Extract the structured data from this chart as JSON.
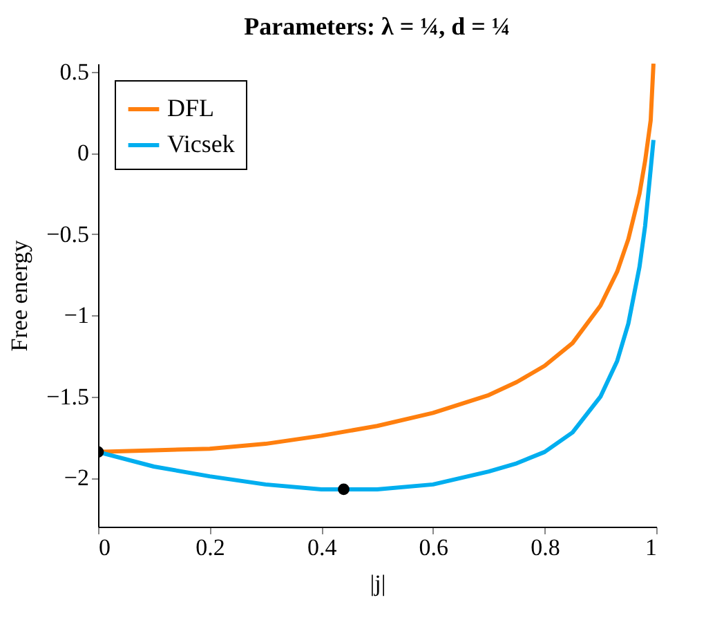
{
  "chart_data": {
    "type": "line",
    "title": "Parameters:  λ = ¼, d = ¼",
    "xlabel": "|j|",
    "ylabel": "Free energy",
    "xlim": [
      0,
      1
    ],
    "ylim": [
      -2.3,
      0.55
    ],
    "xticks": [
      0,
      0.2,
      0.4,
      0.6,
      0.8,
      1
    ],
    "yticks": [
      0.5,
      0,
      {
        "value": -0.5,
        "label": "−0.5"
      },
      {
        "value": -1,
        "label": "−1"
      },
      {
        "value": -1.5,
        "label": "−1.5"
      },
      {
        "value": -2,
        "label": "−2"
      }
    ],
    "grid": false,
    "legend": "top left",
    "marker": "none",
    "line_style": "solid",
    "series": [
      {
        "name": "DFL",
        "color": "#ff7f0e",
        "x": [
          0,
          0.1,
          0.2,
          0.3,
          0.4,
          0.5,
          0.6,
          0.7,
          0.75,
          0.8,
          0.85,
          0.9,
          0.93,
          0.95,
          0.97,
          0.98,
          0.99,
          0.995
        ],
        "values": [
          -1.84,
          -1.83,
          -1.82,
          -1.79,
          -1.74,
          -1.68,
          -1.6,
          -1.49,
          -1.41,
          -1.31,
          -1.17,
          -0.94,
          -0.73,
          -0.53,
          -0.25,
          -0.05,
          0.2,
          0.55
        ]
      },
      {
        "name": "Vicsek",
        "color": "#00aeef",
        "x": [
          0,
          0.1,
          0.2,
          0.3,
          0.4,
          0.5,
          0.6,
          0.7,
          0.75,
          0.8,
          0.85,
          0.9,
          0.93,
          0.95,
          0.97,
          0.98,
          0.99,
          0.995
        ],
        "values": [
          -1.84,
          -1.93,
          -1.99,
          -2.04,
          -2.07,
          -2.07,
          -2.04,
          -1.96,
          -1.91,
          -1.84,
          -1.72,
          -1.5,
          -1.28,
          -1.05,
          -0.7,
          -0.45,
          -0.1,
          0.08
        ]
      },
      {
        "type": "scatter",
        "color": "#000000",
        "marker": "circle",
        "x": [
          0,
          0.44
        ],
        "values": [
          -1.84,
          -2.07
        ]
      }
    ]
  }
}
